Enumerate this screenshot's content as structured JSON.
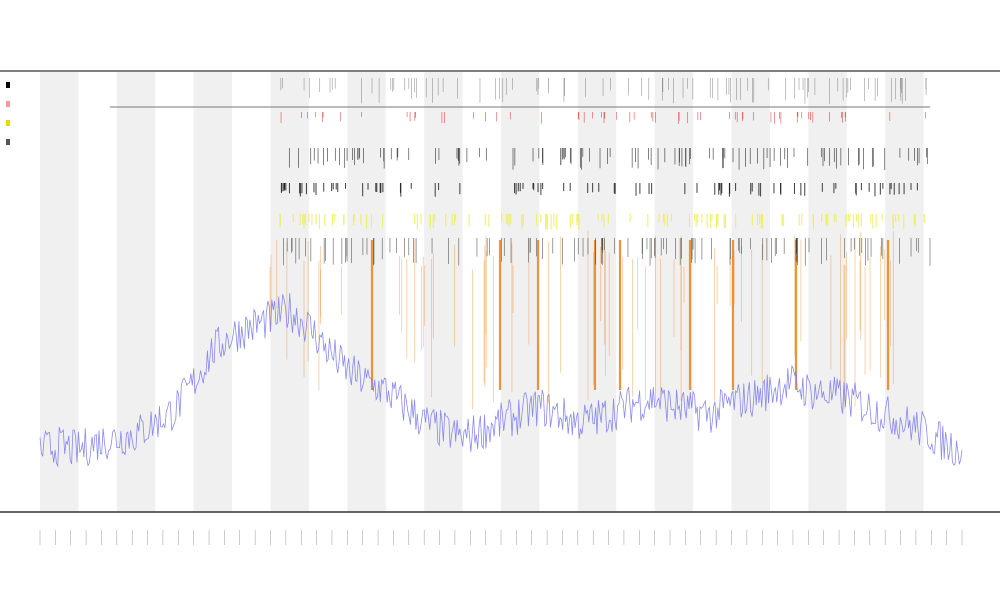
{
  "chart_data": {
    "type": "line",
    "title_lines": [],
    "xlabel": "",
    "ylabel": "",
    "grid": false,
    "legend_position": "top-left",
    "legend": [
      {
        "color": "#000000"
      },
      {
        "color": "#ff9999"
      },
      {
        "color": "#e6d800"
      },
      {
        "color": "#555555"
      }
    ],
    "x_range": [
      0,
      240
    ],
    "y_range": [
      0,
      100
    ],
    "band_count": 24,
    "series": [
      {
        "color": "#7777ee",
        "x": [
          0,
          5,
          10,
          15,
          20,
          25,
          30,
          35,
          40,
          45,
          50,
          55,
          60,
          65,
          70,
          75,
          80,
          85,
          90,
          95,
          100,
          105,
          110,
          115,
          120,
          125,
          130,
          135,
          140,
          145,
          150,
          155,
          160,
          165,
          170,
          175,
          180,
          185,
          190,
          195,
          200,
          205,
          210,
          215,
          220,
          225,
          230,
          235,
          240
        ],
        "values": [
          5,
          6,
          5,
          7,
          8,
          9,
          12,
          15,
          22,
          30,
          34,
          36,
          38,
          40,
          36,
          30,
          25,
          22,
          20,
          16,
          12,
          10,
          8,
          10,
          12,
          14,
          16,
          14,
          12,
          13,
          15,
          17,
          18,
          16,
          15,
          14,
          17,
          18,
          20,
          22,
          20,
          19,
          18,
          16,
          14,
          12,
          10,
          7,
          5
        ]
      }
    ],
    "colors": {
      "band": "#f0f0f0",
      "frame": "#333333",
      "spike_orange": "#ee8822",
      "spike_red": "#dd2222",
      "spike_yellow": "#eeee55",
      "spike_dark": "#111111"
    }
  }
}
